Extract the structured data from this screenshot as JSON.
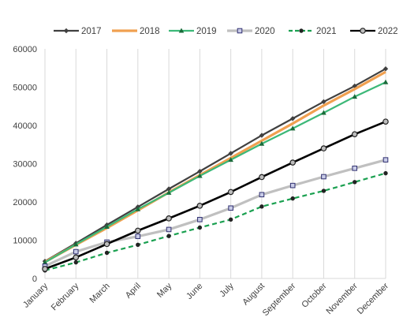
{
  "chart_data": {
    "type": "line",
    "title": "",
    "xlabel": "",
    "ylabel": "",
    "categories": [
      "January",
      "February",
      "March",
      "April",
      "May",
      "June",
      "July",
      "August",
      "September",
      "October",
      "November",
      "December"
    ],
    "ylim": [
      0,
      60000
    ],
    "yticks": [
      0,
      10000,
      20000,
      30000,
      40000,
      50000,
      60000
    ],
    "y_tick_labels": [
      "0",
      "10000",
      "20000",
      "30000",
      "40000",
      "50000",
      "60000"
    ],
    "grid": "vertical lines at categories",
    "legend_position": "top",
    "series": [
      {
        "name": "2017",
        "color": "#404040",
        "marker": "diamond",
        "dash": "solid",
        "values": [
          4500,
          9200,
          14000,
          18700,
          23400,
          28000,
          32700,
          37400,
          41800,
          46200,
          50300,
          54800
        ]
      },
      {
        "name": "2018",
        "color": "#f0a050",
        "marker": "none",
        "dash": "solid",
        "values": [
          4300,
          8800,
          13200,
          17800,
          22500,
          27000,
          31500,
          36000,
          40500,
          45200,
          49500,
          54000
        ]
      },
      {
        "name": "2019",
        "color": "#3cb878",
        "marker": "triangle",
        "dash": "solid",
        "values": [
          4200,
          8900,
          13500,
          18100,
          22400,
          26800,
          31000,
          35200,
          39200,
          43300,
          47500,
          51300
        ]
      },
      {
        "name": "2020",
        "color": "#c0c0c0",
        "marker": "square",
        "dash": "solid",
        "values": [
          3200,
          7000,
          9500,
          11000,
          12800,
          15400,
          18400,
          21900,
          24300,
          26600,
          28800,
          31000
        ]
      },
      {
        "name": "2021",
        "color": "#1aa050",
        "marker": "circle",
        "dash": "dashed",
        "values": [
          2100,
          4200,
          6700,
          8800,
          11100,
          13300,
          15400,
          18800,
          20900,
          22900,
          25200,
          27500
        ]
      },
      {
        "name": "2022",
        "color": "#000000",
        "marker": "hollow-circle",
        "dash": "solid",
        "values": [
          2500,
          5500,
          9000,
          12500,
          15700,
          19000,
          22600,
          26500,
          30300,
          34000,
          37700,
          41000
        ]
      }
    ]
  }
}
